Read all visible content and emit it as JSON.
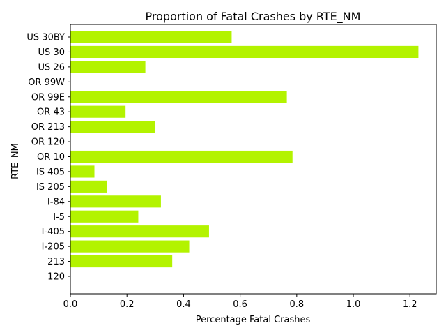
{
  "chart_data": {
    "type": "bar",
    "orientation": "horizontal",
    "title": "Proportion of Fatal Crashes by RTE_NM",
    "xlabel": "Percentage Fatal Crashes",
    "ylabel": "RTE_NM",
    "xlim": [
      0,
      1.293
    ],
    "xticks": [
      0.0,
      0.2,
      0.4,
      0.6,
      0.8,
      1.0,
      1.2
    ],
    "xtick_labels": [
      "0.0",
      "0.2",
      "0.4",
      "0.6",
      "0.8",
      "1.0",
      "1.2"
    ],
    "grid": false,
    "bar_color": "#b3f300",
    "categories": [
      "120",
      "213",
      "I-205",
      "I-405",
      "I-5",
      "I-84",
      "IS 205",
      "IS 405",
      "OR 10",
      "OR 120",
      "OR 213",
      "OR 43",
      "OR 99E",
      "OR 99W",
      "US 26",
      "US 30",
      "US 30BY"
    ],
    "values": [
      0.0,
      0.36,
      0.42,
      0.49,
      0.24,
      0.32,
      0.13,
      0.085,
      0.785,
      0.0,
      0.3,
      0.195,
      0.765,
      0.0,
      0.265,
      1.23,
      0.57
    ]
  }
}
